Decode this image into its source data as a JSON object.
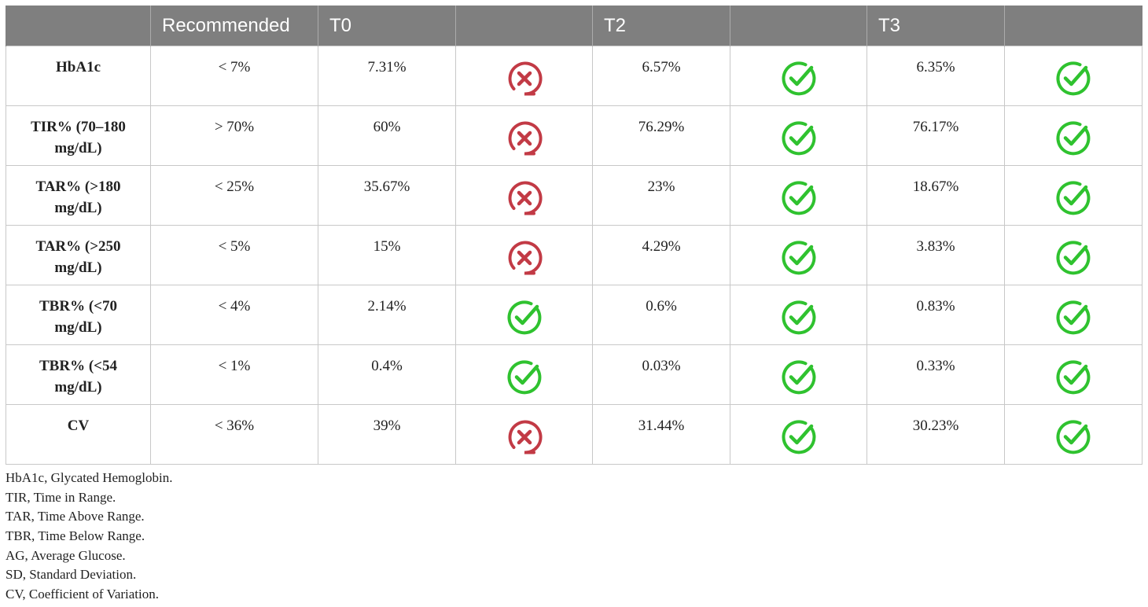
{
  "header": {
    "col0": "",
    "col1": "Recommended",
    "col2": "T0",
    "col3": "",
    "col4": "T2",
    "col5": "",
    "col6": "T3",
    "col7": ""
  },
  "status_icons": {
    "pass": "check-circle-icon",
    "fail": "x-circle-icon"
  },
  "colors": {
    "header_bg": "#7f7f7f",
    "pass": "#2fc22f",
    "fail": "#c23a45"
  },
  "rows": [
    {
      "metric": "HbA1c",
      "recommended": "< 7%",
      "t0": "7.31%",
      "t0_status": "fail",
      "t2": "6.57%",
      "t2_status": "pass",
      "t3": "6.35%",
      "t3_status": "pass"
    },
    {
      "metric": "TIR% (70–180 mg/dL)",
      "recommended": "> 70%",
      "t0": "60%",
      "t0_status": "fail",
      "t2": "76.29%",
      "t2_status": "pass",
      "t3": "76.17%",
      "t3_status": "pass"
    },
    {
      "metric": "TAR% (>180 mg/dL)",
      "recommended": "< 25%",
      "t0": "35.67%",
      "t0_status": "fail",
      "t2": "23%",
      "t2_status": "pass",
      "t3": "18.67%",
      "t3_status": "pass"
    },
    {
      "metric": "TAR% (>250 mg/dL)",
      "recommended": "< 5%",
      "t0": "15%",
      "t0_status": "fail",
      "t2": "4.29%",
      "t2_status": "pass",
      "t3": "3.83%",
      "t3_status": "pass"
    },
    {
      "metric": "TBR% (<70 mg/dL)",
      "recommended": "< 4%",
      "t0": "2.14%",
      "t0_status": "pass",
      "t2": "0.6%",
      "t2_status": "pass",
      "t3": "0.83%",
      "t3_status": "pass"
    },
    {
      "metric": "TBR% (<54 mg/dL)",
      "recommended": "< 1%",
      "t0": "0.4%",
      "t0_status": "pass",
      "t2": "0.03%",
      "t2_status": "pass",
      "t3": "0.33%",
      "t3_status": "pass"
    },
    {
      "metric": "CV",
      "recommended": "< 36%",
      "t0": "39%",
      "t0_status": "fail",
      "t2": "31.44%",
      "t2_status": "pass",
      "t3": "30.23%",
      "t3_status": "pass"
    }
  ],
  "footnotes": [
    "HbA1c, Glycated Hemoglobin.",
    "TIR, Time in Range.",
    "TAR, Time Above Range.",
    "TBR, Time Below Range.",
    "AG, Average Glucose.",
    "SD, Standard Deviation.",
    "CV, Coefficient of Variation."
  ]
}
